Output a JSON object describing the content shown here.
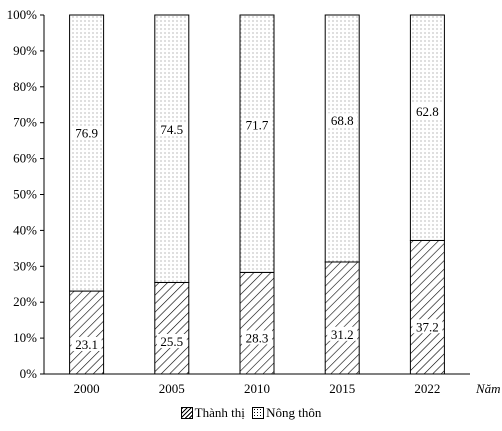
{
  "chart_data": {
    "type": "bar",
    "stacked": true,
    "categories": [
      "2000",
      "2005",
      "2010",
      "2015",
      "2022"
    ],
    "series": [
      {
        "name": "Thành thị",
        "values": [
          23.1,
          25.5,
          28.3,
          31.2,
          37.2
        ],
        "pattern": "hatch"
      },
      {
        "name": "Nông thôn",
        "values": [
          76.9,
          74.5,
          71.7,
          68.8,
          62.8
        ],
        "pattern": "dots"
      }
    ],
    "xlabel": "Năm",
    "ylabel": "",
    "ylim": [
      0,
      100
    ],
    "yticks": [
      "0%",
      "10%",
      "20%",
      "30%",
      "40%",
      "50%",
      "60%",
      "70%",
      "80%",
      "90%",
      "100%"
    ],
    "legend_position": "bottom"
  }
}
